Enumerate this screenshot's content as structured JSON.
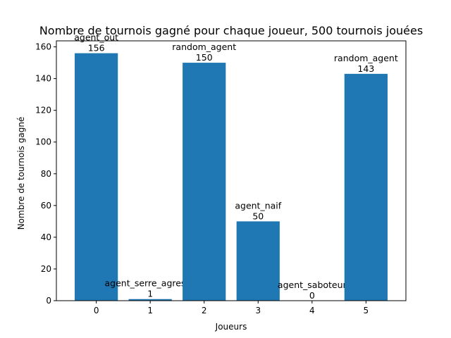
{
  "chart_data": {
    "type": "bar",
    "title": "Nombre de tournois gagné pour chaque joueur, 500 tournois jouées",
    "xlabel": "Joueurs",
    "ylabel": "Nombre de tournois gagné",
    "categories": [
      "0",
      "1",
      "2",
      "3",
      "4",
      "5"
    ],
    "values": [
      156,
      1,
      150,
      50,
      0,
      143
    ],
    "bar_names": [
      "agent_out",
      "agent_serre_agressif",
      "random_agent",
      "agent_naif",
      "agent_saboteur",
      "random_agent"
    ],
    "yticks": [
      0,
      20,
      40,
      60,
      80,
      100,
      120,
      140,
      160
    ],
    "ylim": [
      0,
      163.8
    ],
    "xlim": [
      -0.74,
      5.74
    ],
    "grid": false,
    "bar_color": "#1f77b4"
  }
}
